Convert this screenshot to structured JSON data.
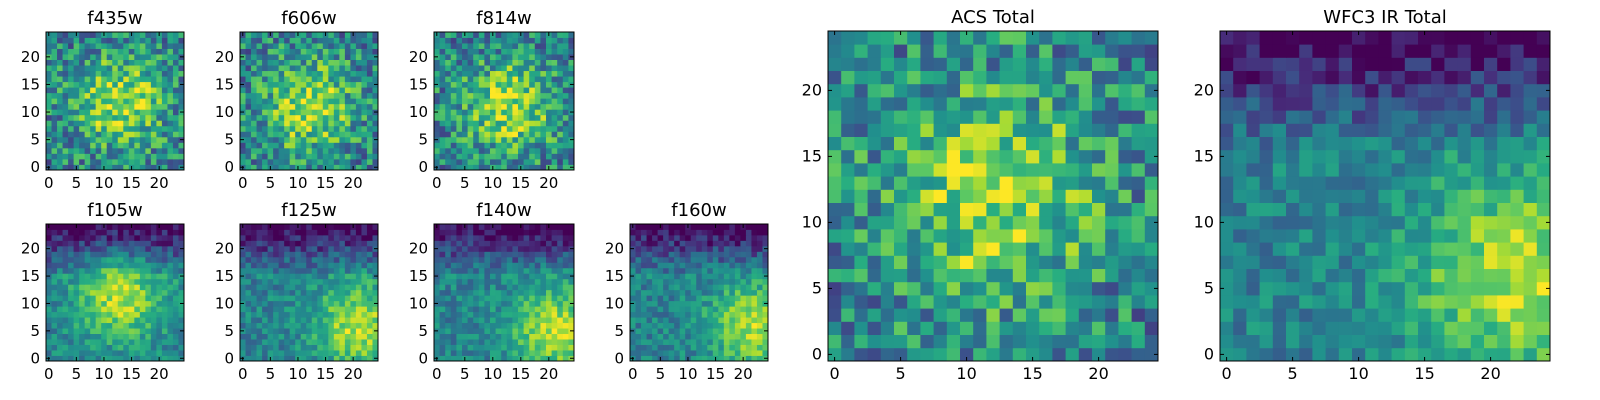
{
  "chart_data": [
    {
      "type": "heatmap",
      "title": "f435w",
      "xticks": [
        "0",
        "5",
        "10",
        "15",
        "20"
      ],
      "yticks": [
        "0",
        "5",
        "10",
        "15",
        "20"
      ],
      "xlim": [
        -0.5,
        24.5
      ],
      "ylim": [
        -0.5,
        24.5
      ],
      "grid_size": 25,
      "colormap": "viridis",
      "peak": [
        13,
        12
      ]
    },
    {
      "type": "heatmap",
      "title": "f606w",
      "xticks": [
        "0",
        "5",
        "10",
        "15",
        "20"
      ],
      "yticks": [
        "0",
        "5",
        "10",
        "15",
        "20"
      ],
      "xlim": [
        -0.5,
        24.5
      ],
      "ylim": [
        -0.5,
        24.5
      ],
      "grid_size": 25,
      "colormap": "viridis",
      "peak": [
        12,
        11
      ]
    },
    {
      "type": "heatmap",
      "title": "f814w",
      "xticks": [
        "0",
        "5",
        "10",
        "15",
        "20"
      ],
      "yticks": [
        "0",
        "5",
        "10",
        "15",
        "20"
      ],
      "xlim": [
        -0.5,
        24.5
      ],
      "ylim": [
        -0.5,
        24.5
      ],
      "grid_size": 25,
      "colormap": "viridis",
      "peak": [
        13,
        11
      ]
    },
    {
      "type": "heatmap",
      "title": "f105w",
      "xticks": [
        "0",
        "5",
        "10",
        "15",
        "20"
      ],
      "yticks": [
        "0",
        "5",
        "10",
        "15",
        "20"
      ],
      "xlim": [
        -0.5,
        24.5
      ],
      "ylim": [
        -0.5,
        24.5
      ],
      "grid_size": 25,
      "colormap": "viridis",
      "peak": [
        13,
        11
      ]
    },
    {
      "type": "heatmap",
      "title": "f125w",
      "xticks": [
        "0",
        "5",
        "10",
        "15",
        "20"
      ],
      "yticks": [
        "0",
        "5",
        "10",
        "15",
        "20"
      ],
      "xlim": [
        -0.5,
        24.5
      ],
      "ylim": [
        -0.5,
        24.5
      ],
      "grid_size": 25,
      "colormap": "viridis",
      "peak": [
        21,
        6
      ]
    },
    {
      "type": "heatmap",
      "title": "f140w",
      "xticks": [
        "0",
        "5",
        "10",
        "15",
        "20"
      ],
      "yticks": [
        "0",
        "5",
        "10",
        "15",
        "20"
      ],
      "xlim": [
        -0.5,
        24.5
      ],
      "ylim": [
        -0.5,
        24.5
      ],
      "grid_size": 25,
      "colormap": "viridis",
      "peak": [
        21,
        5
      ]
    },
    {
      "type": "heatmap",
      "title": "f160w",
      "xticks": [
        "0",
        "5",
        "10",
        "15",
        "20"
      ],
      "yticks": [
        "0",
        "5",
        "10",
        "15",
        "20"
      ],
      "xlim": [
        -0.5,
        24.5
      ],
      "ylim": [
        -0.5,
        24.5
      ],
      "grid_size": 25,
      "colormap": "viridis",
      "peak": [
        22,
        6
      ]
    },
    {
      "type": "heatmap",
      "title": "ACS Total",
      "xticks": [
        "0",
        "5",
        "10",
        "15",
        "20"
      ],
      "yticks": [
        "0",
        "5",
        "10",
        "15",
        "20"
      ],
      "xlim": [
        -0.5,
        24.5
      ],
      "ylim": [
        -0.5,
        24.5
      ],
      "grid_size": 25,
      "colormap": "viridis",
      "peak": [
        12,
        12
      ]
    },
    {
      "type": "heatmap",
      "title": "WFC3 IR Total",
      "xticks": [
        "0",
        "5",
        "10",
        "15",
        "20"
      ],
      "yticks": [
        "0",
        "5",
        "10",
        "15",
        "20"
      ],
      "xlim": [
        -0.5,
        24.5
      ],
      "ylim": [
        -0.5,
        24.5
      ],
      "grid_size": 25,
      "colormap": "viridis",
      "peak": [
        22,
        6
      ]
    }
  ]
}
